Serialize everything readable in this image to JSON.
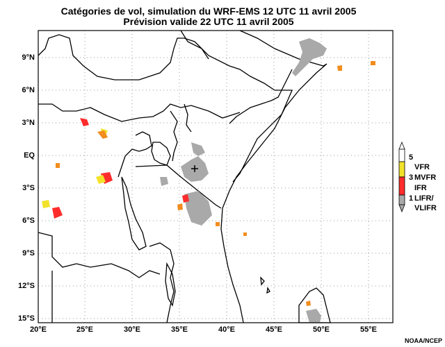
{
  "title": {
    "line1": "Catégories de vol, simulation du WRF-EMS 12 UTC 11 avril 2005",
    "line2": "Prévision valide 22 UTC 11 avril 2005"
  },
  "axes": {
    "lat_labels": [
      "9°N",
      "6°N",
      "3°N",
      "EQ",
      "3°S",
      "6°S",
      "9°S",
      "12°S",
      "15°S"
    ],
    "lon_labels": [
      "20°E",
      "25°E",
      "30°E",
      "35°E",
      "40°E",
      "45°E",
      "50°E",
      "55°E"
    ]
  },
  "legend": {
    "title": "",
    "items": [
      {
        "number": "5",
        "label": "VFR",
        "color": "#f2e22a"
      },
      {
        "number": "3",
        "label": "MVFR",
        "color": "#ff2c2c"
      },
      {
        "number": "",
        "label": "IFR",
        "color": "#ff2c2c"
      },
      {
        "number": "1",
        "label": "LIFR/",
        "color": "#a9a9a9"
      },
      {
        "number": "",
        "label": "VLIFR",
        "color": "#a9a9a9"
      }
    ]
  },
  "colors": {
    "vfr": "#f2e22a",
    "mvfr_ifr": "#ff2c2c",
    "lifr_vlifr": "#a9a9a9",
    "orange_transition": "#f28c1e"
  },
  "credit": "NOAA/NCEP"
}
